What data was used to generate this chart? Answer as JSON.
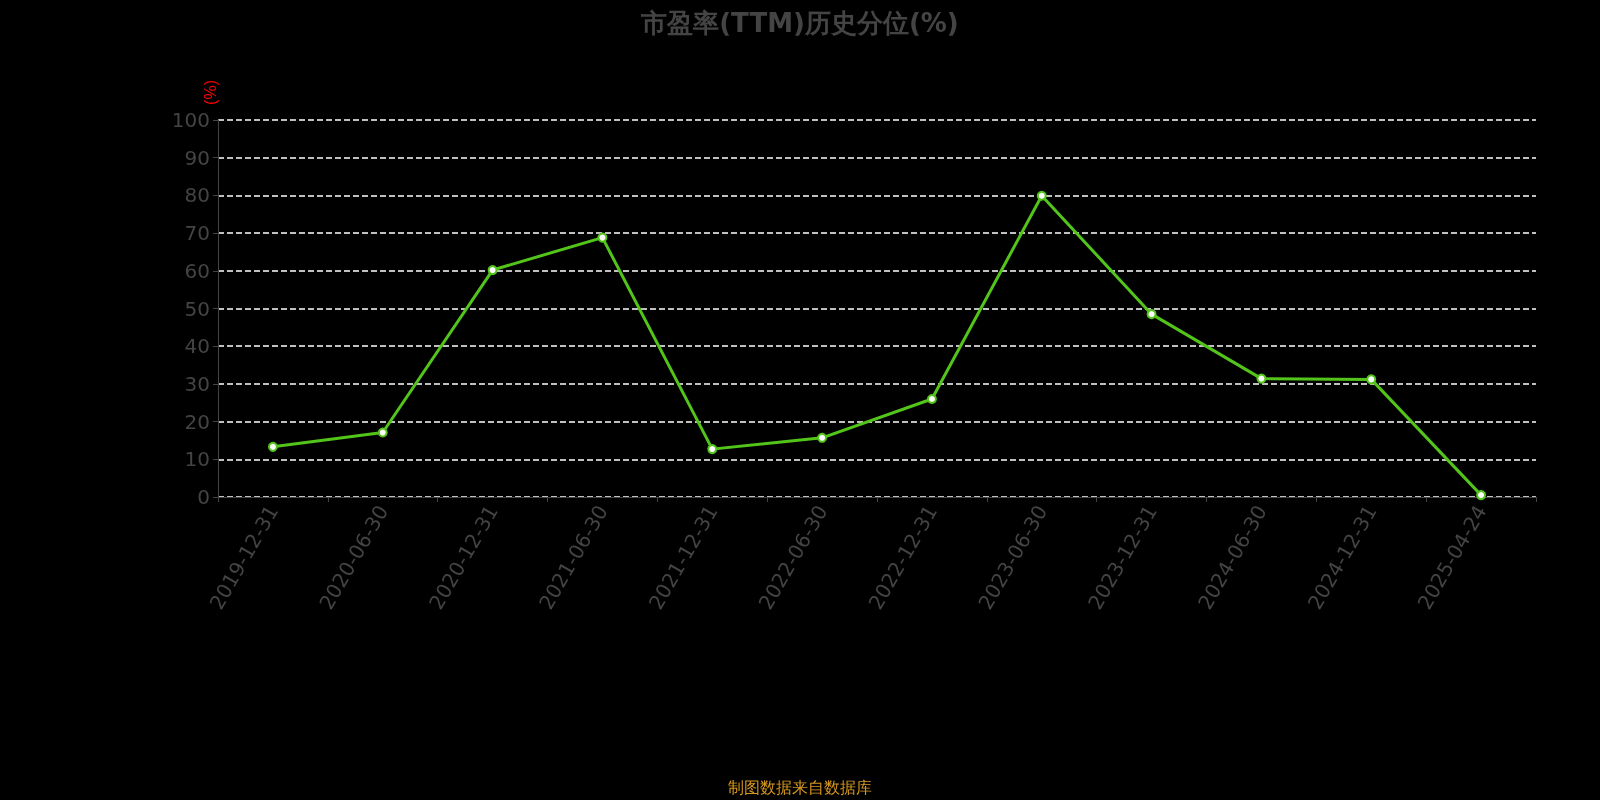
{
  "chart_data": {
    "type": "line",
    "title": "市盈率(TTM)历史分位(%)",
    "ylabel": "(%)",
    "categories": [
      "2019-12-31",
      "2020-06-30",
      "2020-12-31",
      "2021-06-30",
      "2021-12-31",
      "2022-06-30",
      "2022-12-31",
      "2023-06-30",
      "2023-12-31",
      "2024-06-30",
      "2024-12-31",
      "2025-04-24"
    ],
    "series": [
      {
        "color": "#52c41a",
        "values": [
          13.3,
          17.1,
          60.2,
          68.8,
          12.7,
          15.7,
          26.0,
          79.9,
          48.5,
          31.4,
          31.2,
          0.5
        ]
      }
    ],
    "ylim": [
      0,
      100
    ],
    "yticks": [
      0,
      10,
      20,
      30,
      40,
      50,
      60,
      70,
      80,
      90,
      100
    ],
    "grid": "y",
    "marker": "circle",
    "line_style": "solid",
    "annotations": [
      "制图数据来自数据库"
    ]
  }
}
